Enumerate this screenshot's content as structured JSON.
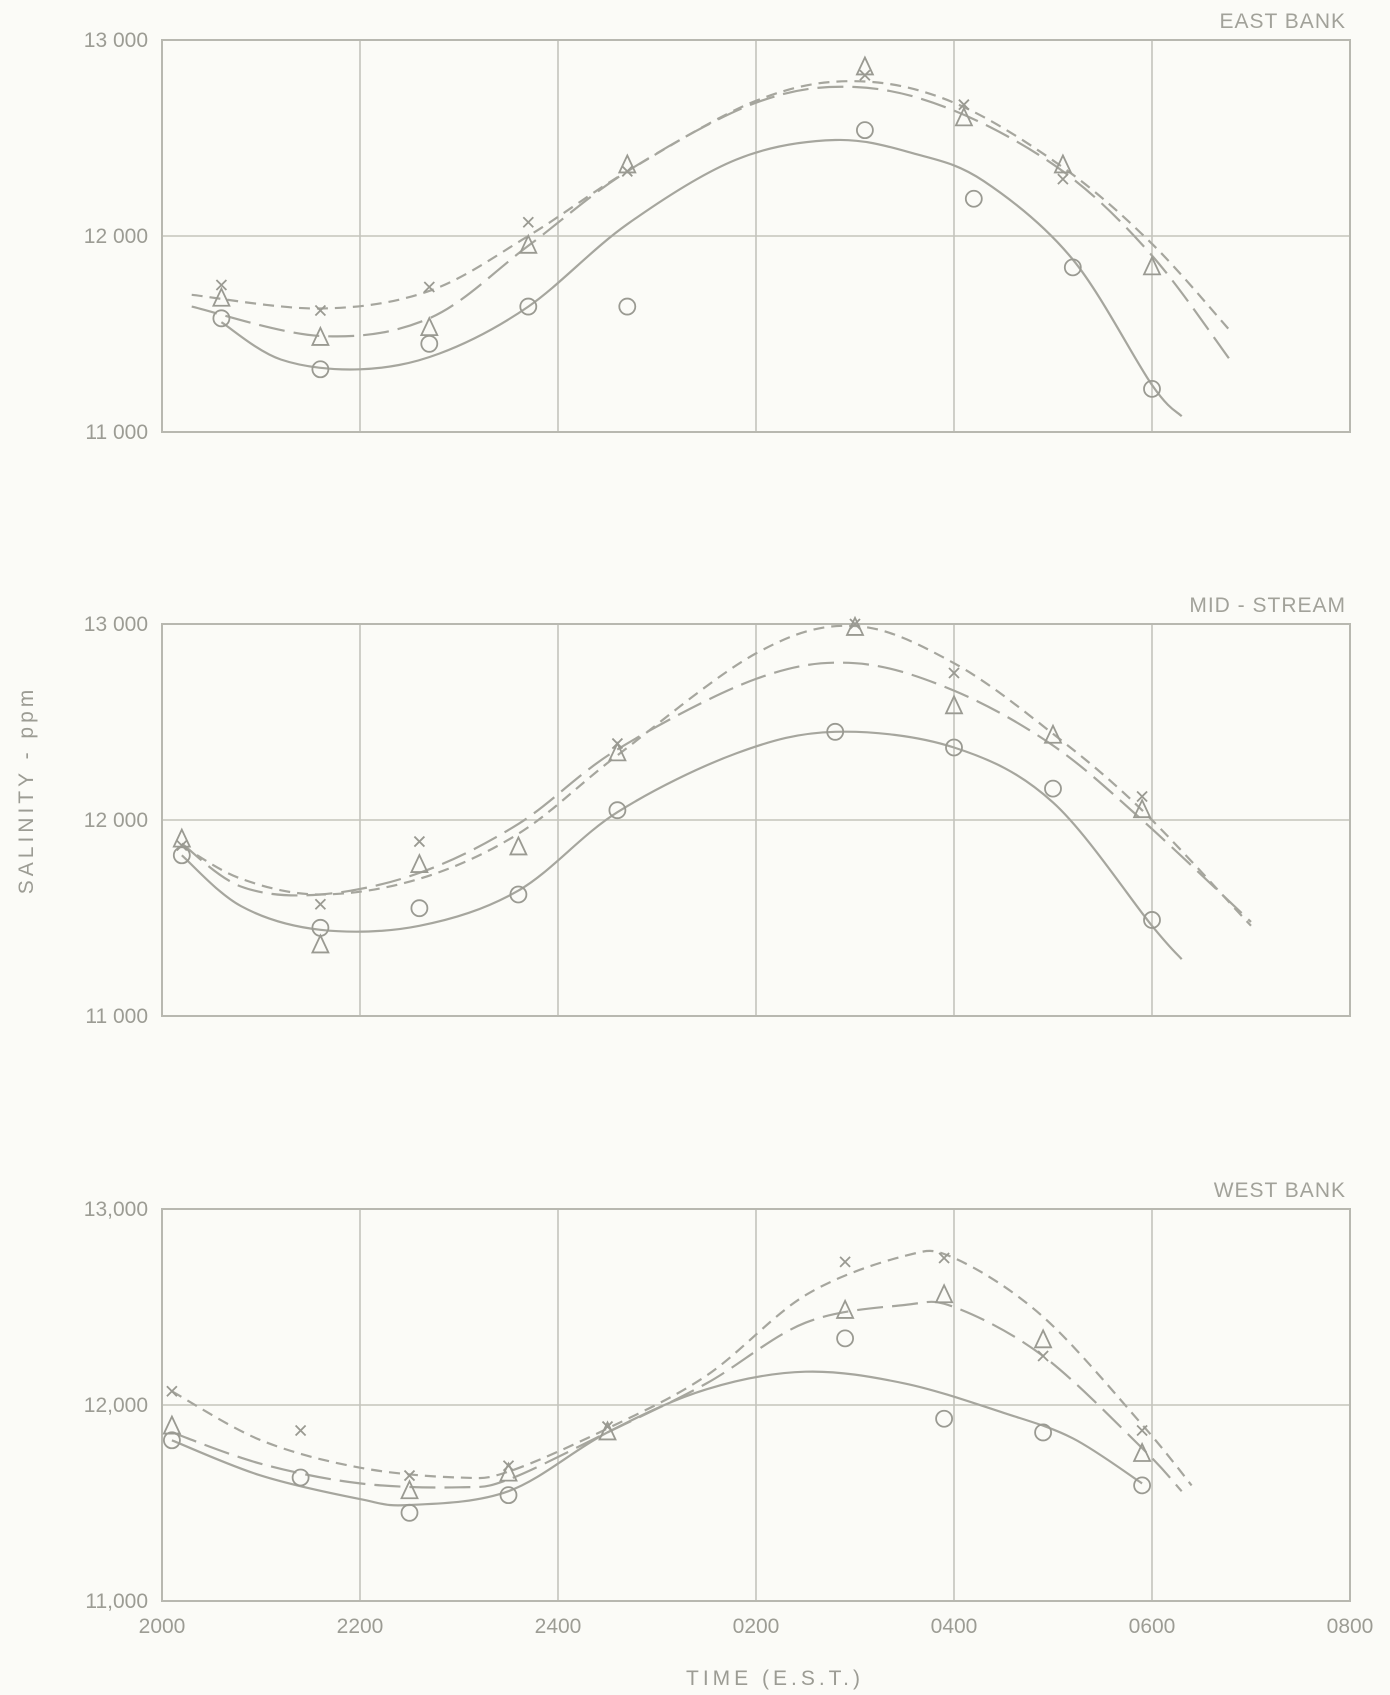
{
  "colors": {
    "background": "#fbfbf7",
    "ink": "#a6a69e",
    "grid": "#c4c4bc"
  },
  "axis": {
    "ylabel": "SALINITY - ppm",
    "xlabel": "TIME (E.S.T.)",
    "x_ticks": [
      "2000",
      "2200",
      "2400",
      "0200",
      "0400",
      "0600",
      "0800"
    ]
  },
  "chart_data": [
    {
      "type": "line",
      "title": "EAST BANK",
      "x_unit": "hours after 2000 E.S.T.",
      "xlim": [
        0,
        12
      ],
      "ylim": [
        11000,
        13000
      ],
      "y_ticks": [
        "13 000",
        "12 000",
        "11 000"
      ],
      "series": [
        {
          "marker": "x",
          "curve": "short-dash",
          "points": [
            [
              0.6,
              11750
            ],
            [
              1.6,
              11620
            ],
            [
              2.7,
              11740
            ],
            [
              3.7,
              12070
            ],
            [
              4.7,
              12330
            ],
            [
              7.1,
              12820
            ],
            [
              8.1,
              12670
            ],
            [
              9.1,
              12290
            ]
          ],
          "curve_points": [
            [
              0.3,
              11700
            ],
            [
              1.6,
              11630
            ],
            [
              2.7,
              11720
            ],
            [
              3.7,
              12000
            ],
            [
              4.7,
              12330
            ],
            [
              6.0,
              12690
            ],
            [
              7.0,
              12790
            ],
            [
              8.0,
              12680
            ],
            [
              9.1,
              12350
            ],
            [
              10.0,
              11960
            ],
            [
              10.8,
              11510
            ]
          ]
        },
        {
          "marker": "triangle",
          "curve": "long-dash",
          "points": [
            [
              0.6,
              11680
            ],
            [
              1.6,
              11480
            ],
            [
              2.7,
              11530
            ],
            [
              3.7,
              11950
            ],
            [
              4.7,
              12360
            ],
            [
              7.1,
              12860
            ],
            [
              8.1,
              12600
            ],
            [
              9.1,
              12360
            ],
            [
              10.0,
              11840
            ]
          ],
          "curve_points": [
            [
              0.3,
              11640
            ],
            [
              1.6,
              11490
            ],
            [
              2.7,
              11580
            ],
            [
              3.7,
              11950
            ],
            [
              4.7,
              12330
            ],
            [
              6.0,
              12680
            ],
            [
              7.0,
              12760
            ],
            [
              8.0,
              12640
            ],
            [
              9.1,
              12330
            ],
            [
              10.0,
              11900
            ],
            [
              10.8,
              11360
            ]
          ]
        },
        {
          "marker": "circle",
          "curve": "solid",
          "points": [
            [
              0.6,
              11580
            ],
            [
              1.6,
              11320
            ],
            [
              2.7,
              11450
            ],
            [
              3.7,
              11640
            ],
            [
              4.7,
              11640
            ],
            [
              7.1,
              12540
            ],
            [
              8.2,
              12190
            ],
            [
              9.2,
              11840
            ],
            [
              10.0,
              11220
            ]
          ],
          "curve_points": [
            [
              0.6,
              11560
            ],
            [
              1.2,
              11370
            ],
            [
              2.0,
              11320
            ],
            [
              2.8,
              11400
            ],
            [
              3.7,
              11640
            ],
            [
              4.7,
              12060
            ],
            [
              5.8,
              12390
            ],
            [
              6.8,
              12490
            ],
            [
              7.6,
              12420
            ],
            [
              8.3,
              12280
            ],
            [
              9.2,
              11880
            ],
            [
              10.0,
              11240
            ],
            [
              10.3,
              11080
            ]
          ]
        }
      ]
    },
    {
      "type": "line",
      "title": "MID - STREAM",
      "x_unit": "hours after 2000 E.S.T.",
      "xlim": [
        0,
        12
      ],
      "ylim": [
        11000,
        13000
      ],
      "y_ticks": [
        "13 000",
        "12 000",
        "11 000"
      ],
      "series": [
        {
          "marker": "x",
          "curve": "short-dash",
          "points": [
            [
              0.2,
              11870
            ],
            [
              1.6,
              11570
            ],
            [
              2.6,
              11890
            ],
            [
              4.6,
              12390
            ],
            [
              7.0,
              13000
            ],
            [
              8.0,
              12750
            ],
            [
              9.9,
              12120
            ]
          ],
          "curve_points": [
            [
              0.2,
              11870
            ],
            [
              0.8,
              11700
            ],
            [
              1.6,
              11620
            ],
            [
              2.6,
              11700
            ],
            [
              3.6,
              11930
            ],
            [
              4.6,
              12330
            ],
            [
              6.0,
              12850
            ],
            [
              7.0,
              12990
            ],
            [
              8.0,
              12800
            ],
            [
              9.0,
              12440
            ],
            [
              9.9,
              12050
            ],
            [
              11.0,
              11460
            ]
          ]
        },
        {
          "marker": "triangle",
          "curve": "long-dash",
          "points": [
            [
              0.2,
              11900
            ],
            [
              1.6,
              11360
            ],
            [
              2.6,
              11770
            ],
            [
              3.6,
              11860
            ],
            [
              4.6,
              12340
            ],
            [
              7.0,
              12980
            ],
            [
              8.0,
              12580
            ],
            [
              9.0,
              12430
            ],
            [
              9.9,
              12050
            ]
          ],
          "curve_points": [
            [
              0.2,
              11880
            ],
            [
              0.8,
              11660
            ],
            [
              1.6,
              11620
            ],
            [
              2.6,
              11730
            ],
            [
              3.6,
              11980
            ],
            [
              4.6,
              12360
            ],
            [
              6.0,
              12720
            ],
            [
              7.0,
              12800
            ],
            [
              8.0,
              12660
            ],
            [
              9.0,
              12380
            ],
            [
              9.9,
              12000
            ],
            [
              11.0,
              11480
            ]
          ]
        },
        {
          "marker": "circle",
          "curve": "solid",
          "points": [
            [
              0.2,
              11820
            ],
            [
              1.6,
              11450
            ],
            [
              2.6,
              11550
            ],
            [
              3.6,
              11620
            ],
            [
              4.6,
              12050
            ],
            [
              6.8,
              12450
            ],
            [
              8.0,
              12370
            ],
            [
              9.0,
              12160
            ],
            [
              10.0,
              11490
            ]
          ],
          "curve_points": [
            [
              0.2,
              11820
            ],
            [
              0.8,
              11560
            ],
            [
              1.6,
              11440
            ],
            [
              2.6,
              11460
            ],
            [
              3.6,
              11640
            ],
            [
              4.6,
              12040
            ],
            [
              5.8,
              12340
            ],
            [
              6.8,
              12450
            ],
            [
              8.0,
              12370
            ],
            [
              9.0,
              12090
            ],
            [
              10.0,
              11460
            ],
            [
              10.3,
              11290
            ]
          ]
        }
      ]
    },
    {
      "type": "line",
      "title": "WEST BANK",
      "x_unit": "hours after 2000 E.S.T.",
      "xlim": [
        0,
        12
      ],
      "ylim": [
        11000,
        13000
      ],
      "y_ticks": [
        "13,000",
        "12,000",
        "11,000"
      ],
      "series": [
        {
          "marker": "x",
          "curve": "short-dash",
          "points": [
            [
              0.1,
              12070
            ],
            [
              1.4,
              11870
            ],
            [
              2.5,
              11640
            ],
            [
              3.5,
              11690
            ],
            [
              4.5,
              11890
            ],
            [
              6.9,
              12730
            ],
            [
              7.9,
              12750
            ],
            [
              8.9,
              12250
            ],
            [
              9.9,
              11870
            ]
          ],
          "curve_points": [
            [
              0.1,
              12070
            ],
            [
              1.0,
              11820
            ],
            [
              2.0,
              11680
            ],
            [
              3.0,
              11630
            ],
            [
              3.5,
              11660
            ],
            [
              4.5,
              11880
            ],
            [
              5.5,
              12150
            ],
            [
              6.5,
              12560
            ],
            [
              7.5,
              12760
            ],
            [
              8.0,
              12750
            ],
            [
              8.9,
              12450
            ],
            [
              9.9,
              11900
            ],
            [
              10.4,
              11590
            ]
          ]
        },
        {
          "marker": "triangle",
          "curve": "long-dash",
          "points": [
            [
              0.1,
              11890
            ],
            [
              2.5,
              11560
            ],
            [
              3.5,
              11650
            ],
            [
              4.5,
              11860
            ],
            [
              6.9,
              12480
            ],
            [
              7.9,
              12560
            ],
            [
              8.9,
              12330
            ],
            [
              9.9,
              11750
            ]
          ],
          "curve_points": [
            [
              0.1,
              11860
            ],
            [
              1.0,
              11700
            ],
            [
              2.0,
              11600
            ],
            [
              3.0,
              11580
            ],
            [
              3.5,
              11620
            ],
            [
              4.5,
              11860
            ],
            [
              5.5,
              12110
            ],
            [
              6.5,
              12420
            ],
            [
              7.5,
              12510
            ],
            [
              8.0,
              12500
            ],
            [
              8.9,
              12250
            ],
            [
              9.9,
              11780
            ],
            [
              10.3,
              11560
            ]
          ]
        },
        {
          "marker": "circle",
          "curve": "solid",
          "points": [
            [
              0.1,
              11820
            ],
            [
              1.4,
              11630
            ],
            [
              2.5,
              11450
            ],
            [
              3.5,
              11540
            ],
            [
              6.9,
              12340
            ],
            [
              7.9,
              11930
            ],
            [
              8.9,
              11860
            ],
            [
              9.9,
              11590
            ]
          ],
          "curve_points": [
            [
              0.1,
              11820
            ],
            [
              1.0,
              11640
            ],
            [
              2.0,
              11520
            ],
            [
              2.5,
              11490
            ],
            [
              3.5,
              11560
            ],
            [
              4.5,
              11860
            ],
            [
              5.5,
              12080
            ],
            [
              6.5,
              12170
            ],
            [
              7.5,
              12110
            ],
            [
              8.5,
              11960
            ],
            [
              9.2,
              11830
            ],
            [
              9.9,
              11600
            ]
          ]
        }
      ]
    }
  ]
}
